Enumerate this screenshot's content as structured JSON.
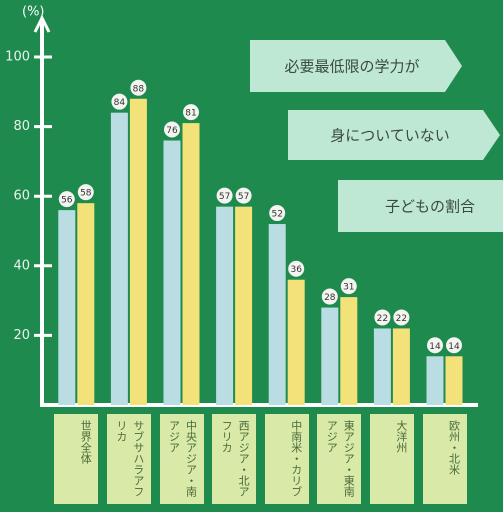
{
  "chart_data": {
    "type": "bar",
    "title": [
      "必要最低限の学力が",
      "身についていない",
      "子どもの割合"
    ],
    "y_label": "(%)",
    "categories": [
      "世界全体",
      "サブサハラアフリカ",
      "中央アジア・南アジア",
      "西アジア・北アフリカ",
      "中南米・カリブ",
      "東アジア・東南アジア",
      "大洋州",
      "欧州・北米"
    ],
    "series": [
      {
        "color": "#b9dde2",
        "values": [
          56,
          84,
          76,
          57,
          52,
          28,
          22,
          14
        ]
      },
      {
        "color": "#f3e27a",
        "values": [
          58,
          88,
          81,
          57,
          36,
          31,
          22,
          14
        ]
      }
    ],
    "ylim": [
      0,
      110
    ],
    "yticks": [
      20,
      40,
      60,
      80,
      100
    ]
  }
}
